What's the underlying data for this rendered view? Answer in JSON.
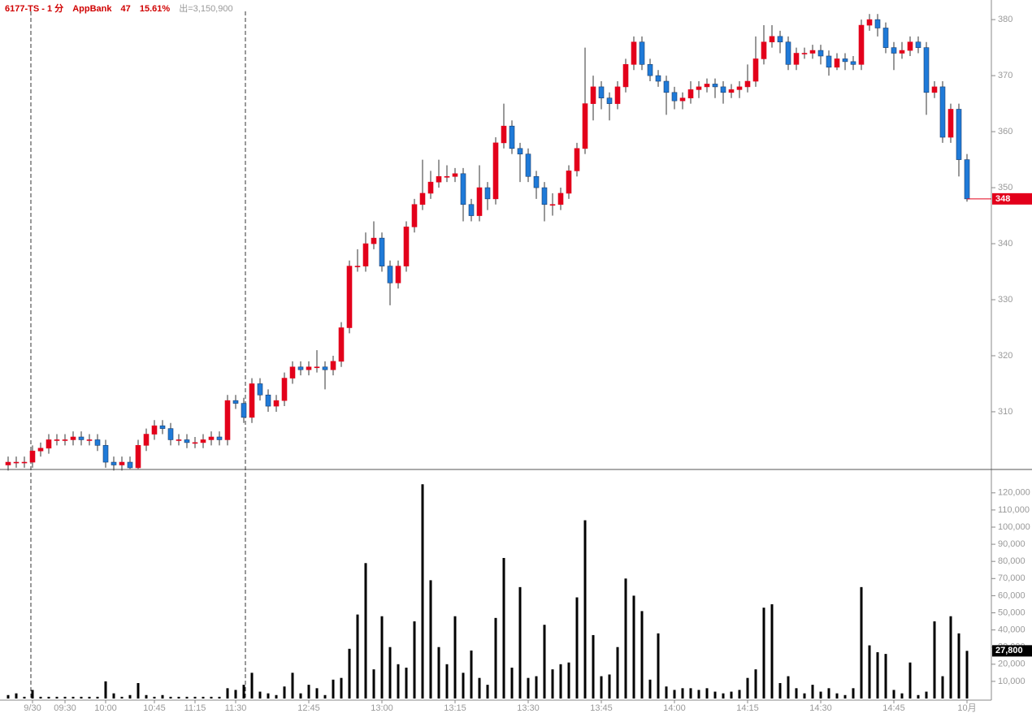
{
  "header": {
    "symbol": "6177-TS - 1 分",
    "name": "AppBank",
    "change": "47",
    "change_pct": "15.61%",
    "volume_text": "出=3,150,900"
  },
  "chart_data": {
    "type": "candlestick",
    "categories": [
      null,
      null,
      null,
      "9/30",
      null,
      null,
      null,
      "09:30",
      null,
      null,
      null,
      null,
      "10:00",
      null,
      null,
      null,
      null,
      null,
      "10:45",
      null,
      null,
      null,
      null,
      "11:15",
      null,
      null,
      null,
      null,
      "11:30",
      null,
      null,
      null,
      null,
      null,
      null,
      null,
      null,
      "12:45",
      null,
      null,
      null,
      null,
      null,
      null,
      null,
      null,
      "13:00",
      null,
      null,
      null,
      null,
      null,
      null,
      null,
      null,
      "13:15",
      null,
      null,
      null,
      null,
      null,
      null,
      null,
      null,
      "13:30",
      null,
      null,
      null,
      null,
      null,
      null,
      null,
      null,
      "13:45",
      null,
      null,
      null,
      null,
      null,
      null,
      null,
      null,
      "14:00",
      null,
      null,
      null,
      null,
      null,
      null,
      null,
      null,
      "14:15",
      null,
      null,
      null,
      null,
      null,
      null,
      null,
      null,
      "14:30",
      null,
      null,
      null,
      null,
      null,
      null,
      null,
      null,
      "14:45",
      null,
      null,
      null,
      null,
      null,
      null,
      null,
      null,
      "10月"
    ],
    "open": [
      300.5,
      301,
      301,
      301,
      303,
      303.5,
      305,
      305,
      305,
      305.5,
      305,
      305,
      304,
      301,
      300.5,
      301,
      300,
      304,
      306,
      307.5,
      307,
      305,
      305,
      304.5,
      304.5,
      305,
      305.5,
      305,
      312,
      311.5,
      309,
      315,
      313,
      311,
      312,
      316,
      318,
      317.5,
      318,
      318,
      317.5,
      319,
      325,
      336,
      336,
      340,
      341,
      336,
      333,
      336,
      343,
      347,
      349,
      351,
      352,
      352,
      352.5,
      347,
      345,
      350,
      348,
      358,
      361,
      357,
      356,
      352,
      350,
      347,
      347,
      349,
      353,
      357,
      365,
      368,
      366,
      365,
      368,
      372,
      376,
      372,
      370,
      369,
      367,
      365.5,
      366,
      367.5,
      368,
      368.5,
      368,
      367,
      367.5,
      368,
      369,
      373,
      376,
      377,
      376,
      372,
      374,
      374,
      374.5,
      373.5,
      371.5,
      373,
      372.5,
      372,
      379,
      380,
      378.5,
      375,
      374,
      374.5,
      376,
      375,
      367,
      368,
      359,
      364,
      355
    ],
    "high": [
      302,
      302,
      302,
      304,
      304.5,
      306,
      306,
      306,
      306.5,
      306.5,
      306,
      306,
      305,
      302,
      302,
      302,
      305,
      307,
      308.5,
      308.5,
      308,
      306,
      306,
      305.5,
      306,
      306.5,
      306.5,
      313,
      313,
      312.5,
      316,
      316,
      314,
      313,
      317,
      319,
      319,
      319,
      321,
      319,
      320,
      326,
      337,
      339,
      342,
      344,
      342,
      337,
      337,
      344,
      348,
      355,
      353,
      355,
      354,
      353.5,
      353.5,
      348,
      354,
      351,
      359,
      365,
      362,
      358,
      357,
      353,
      351,
      349,
      350,
      354,
      358,
      375,
      370,
      369,
      367,
      369,
      373,
      377,
      377,
      373,
      371,
      370,
      368,
      367,
      369,
      369,
      369.5,
      369.5,
      369,
      368.5,
      369,
      372,
      377,
      379,
      379,
      378,
      377,
      375,
      375,
      375.5,
      375.5,
      374.5,
      374,
      374,
      373.5,
      380,
      381,
      381,
      379.5,
      376,
      376,
      377,
      377,
      376,
      369,
      369,
      365,
      365,
      356
    ],
    "low": [
      299.5,
      300,
      300,
      300,
      302,
      302.5,
      304,
      304,
      304,
      304,
      304,
      303,
      300,
      299.5,
      299.5,
      299.8,
      299.8,
      303,
      305,
      306,
      304,
      304,
      303.5,
      303.5,
      303.5,
      304,
      304,
      304,
      310.5,
      308,
      308,
      312,
      310,
      310,
      311,
      315,
      316.5,
      316.5,
      317,
      314,
      316.5,
      318,
      324,
      335,
      335,
      339,
      335,
      329,
      332,
      335,
      342,
      346,
      348,
      350,
      351,
      351,
      344,
      344,
      344,
      346,
      347,
      357,
      356,
      351,
      351,
      348,
      344,
      345,
      346,
      348,
      352,
      356,
      362,
      364,
      362,
      364,
      367,
      371,
      371,
      369,
      368,
      363,
      364,
      364,
      365,
      366,
      367,
      366,
      365,
      366,
      366,
      367,
      368,
      372,
      375,
      374,
      371,
      371,
      373,
      373,
      372,
      370,
      371,
      371,
      371,
      371,
      378,
      377,
      374,
      371,
      373,
      373.5,
      374,
      363,
      366,
      358,
      358,
      352,
      347.5
    ],
    "close": [
      301,
      301,
      301,
      303,
      303.5,
      305,
      305,
      305,
      305.5,
      305,
      305,
      304,
      301,
      300.5,
      301,
      300,
      304,
      306,
      307.5,
      307,
      305,
      305,
      304.5,
      304.5,
      305,
      305.5,
      305,
      312,
      311.5,
      309,
      315,
      313,
      311,
      312,
      316,
      318,
      317.5,
      318,
      318,
      317.5,
      319,
      325,
      336,
      336,
      340,
      341,
      336,
      333,
      336,
      343,
      347,
      349,
      351,
      352,
      352,
      352.5,
      347,
      345,
      350,
      348,
      358,
      361,
      357,
      356,
      352,
      350,
      347,
      347,
      349,
      353,
      357,
      365,
      368,
      366,
      365,
      368,
      372,
      376,
      372,
      370,
      369,
      367,
      365.5,
      366,
      367.5,
      368,
      368.5,
      368,
      367,
      367.5,
      368,
      369,
      373,
      376,
      377,
      376,
      372,
      374,
      374,
      374.5,
      373.5,
      371.5,
      373,
      372.5,
      372,
      379,
      380,
      378.5,
      375,
      374,
      374.5,
      376,
      375,
      367,
      368,
      359,
      364,
      355,
      348
    ],
    "volume": [
      2000,
      3000,
      1000,
      5000,
      1000,
      1000,
      1000,
      1000,
      1000,
      1000,
      1000,
      1000,
      10000,
      3000,
      1000,
      2000,
      9000,
      2000,
      1000,
      2000,
      1000,
      1000,
      1000,
      1000,
      1000,
      1000,
      1000,
      6000,
      5000,
      8000,
      15000,
      4000,
      3000,
      2000,
      7000,
      15000,
      3000,
      8000,
      6000,
      2000,
      11000,
      12000,
      29000,
      49000,
      79000,
      17000,
      48000,
      30000,
      20000,
      18000,
      45000,
      125000,
      69000,
      30000,
      20000,
      48000,
      15000,
      28000,
      12000,
      8000,
      47000,
      82000,
      18000,
      65000,
      12000,
      13000,
      43000,
      17000,
      20000,
      21000,
      59000,
      104000,
      37000,
      13000,
      14000,
      30000,
      70000,
      60000,
      51000,
      11000,
      38000,
      7000,
      5000,
      6000,
      6000,
      5000,
      6000,
      4000,
      3000,
      4000,
      5000,
      12000,
      17000,
      53000,
      55000,
      9000,
      13000,
      6000,
      3000,
      8000,
      4000,
      6000,
      3000,
      2000,
      6000,
      65000,
      31000,
      27000,
      26000,
      5000,
      3000,
      21000,
      2000,
      4000,
      45000,
      13000,
      48000,
      38000,
      27800
    ],
    "last_volume_label": "27,800",
    "up_color": "#e3001b",
    "down_color": "#1f7ad8",
    "volume_color": "#000000",
    "ylim": [
      299.7,
      383.5
    ],
    "yticks": [
      310,
      320,
      330,
      340,
      350,
      360,
      370,
      380
    ],
    "y2lim": [
      0,
      132700
    ],
    "y2ticks": [
      {
        "value": 10000,
        "label": "10,000"
      },
      {
        "value": 20000,
        "label": "20,000"
      },
      {
        "value": 30000,
        "label": "30,000"
      },
      {
        "value": 40000,
        "label": "40,000"
      },
      {
        "value": 50000,
        "label": "50,000"
      },
      {
        "value": 60000,
        "label": "60,000"
      },
      {
        "value": 70000,
        "label": "70,000"
      },
      {
        "value": 80000,
        "label": "80,000"
      },
      {
        "value": 90000,
        "label": "90,000"
      },
      {
        "value": 100000,
        "label": "100,000"
      },
      {
        "value": 110000,
        "label": "110,000"
      },
      {
        "value": 120000,
        "label": "120,000"
      }
    ]
  }
}
